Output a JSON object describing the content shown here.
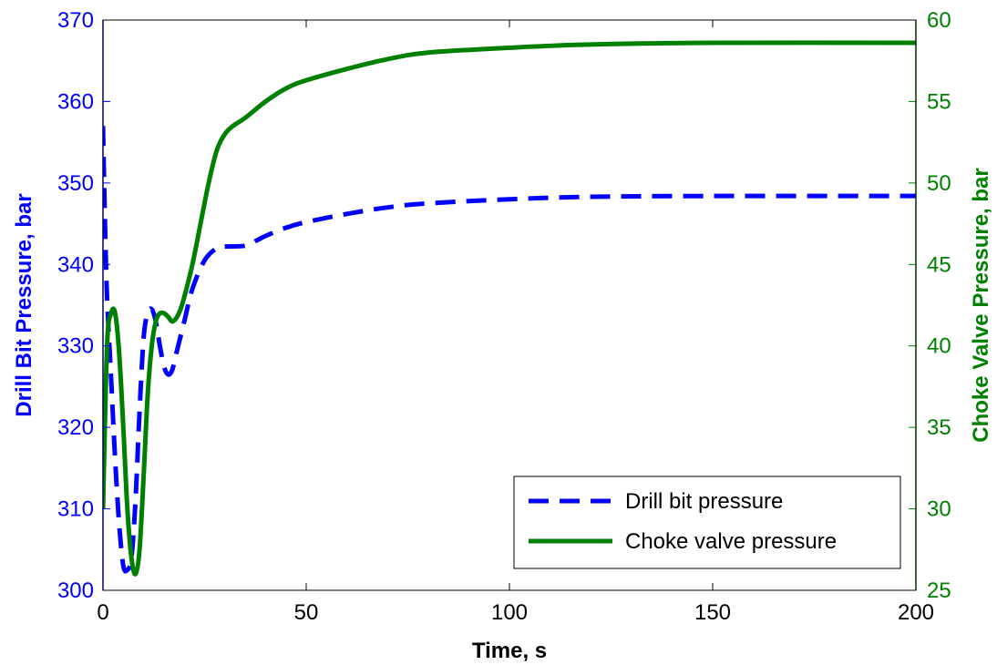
{
  "chart_data": {
    "type": "line",
    "title": "",
    "xlabel": "Time, s",
    "ylabel_left": "Drill Bit Pressure, bar",
    "ylabel_right": "Choke Valve Pressure, bar",
    "xlim": [
      0,
      200
    ],
    "ylim_left": [
      300,
      370
    ],
    "ylim_right": [
      25,
      60
    ],
    "x_ticks": [
      0,
      50,
      100,
      150,
      200
    ],
    "y_ticks_left": [
      300,
      310,
      320,
      330,
      340,
      350,
      360,
      370
    ],
    "y_ticks_right": [
      25,
      30,
      35,
      40,
      45,
      50,
      55,
      60
    ],
    "grid": false,
    "legend_position": "bottom-right",
    "colors": {
      "left_axis": "#0000ff",
      "right_axis": "#008000",
      "frame": "#000000"
    },
    "series": [
      {
        "name": "Drill bit pressure",
        "axis": "left",
        "color": "#0000ff",
        "style": "dashed",
        "x": [
          0,
          0.5,
          1,
          2,
          3,
          4,
          5,
          6,
          7,
          8,
          9,
          10,
          11,
          12,
          13,
          14,
          15,
          16,
          17,
          18,
          20,
          22,
          25,
          28,
          30,
          35,
          38,
          40,
          45,
          50,
          60,
          70,
          80,
          100,
          120,
          150,
          200
        ],
        "y": [
          357,
          345,
          336,
          326,
          316,
          308,
          303,
          302.5,
          304,
          311,
          322,
          331,
          334,
          334.5,
          333,
          330,
          327.5,
          326.5,
          327,
          329,
          333,
          337,
          340.5,
          342,
          342.2,
          342.3,
          343,
          343.5,
          344.5,
          345.2,
          346.2,
          347,
          347.5,
          348,
          348.3,
          348.4,
          348.4
        ]
      },
      {
        "name": "Choke valve pressure",
        "axis": "right",
        "color": "#008000",
        "style": "solid",
        "x": [
          0,
          1,
          2,
          3,
          4,
          5,
          6,
          7,
          8,
          9,
          10,
          11,
          12,
          13,
          14,
          15,
          16,
          17,
          18,
          19,
          20,
          22,
          24,
          26,
          28,
          30,
          32,
          35,
          40,
          45,
          50,
          60,
          70,
          80,
          100,
          120,
          150,
          200
        ],
        "y": [
          30,
          40,
          42,
          42,
          39.5,
          35,
          30,
          27,
          26,
          27.5,
          32,
          37,
          40,
          41.5,
          42,
          42,
          41.8,
          41.5,
          41.7,
          42.2,
          43,
          45,
          47.5,
          50,
          52,
          53,
          53.5,
          54,
          55,
          55.8,
          56.3,
          57,
          57.6,
          58,
          58.3,
          58.5,
          58.6,
          58.6
        ]
      }
    ]
  }
}
